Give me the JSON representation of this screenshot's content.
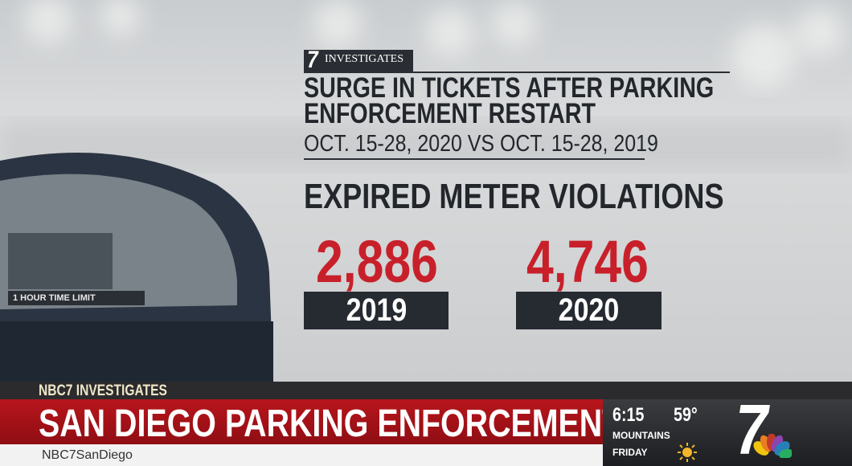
{
  "meter": {
    "label": "1 HOUR TIME LIMIT"
  },
  "graphic": {
    "badge_logo": "7",
    "badge": "INVESTIGATES",
    "title": [
      "SURGE IN TICKETS AFTER PARKING",
      "ENFORCEMENT RESTART"
    ],
    "subtitle": "OCT. 15-28, 2020 VS OCT. 15-28, 2019",
    "heading": "EXPIRED METER VIOLATIONS",
    "stats": [
      {
        "value": "2,886",
        "year": "2019"
      },
      {
        "value": "4,746",
        "year": "2020"
      }
    ]
  },
  "lower_third": {
    "tag": "NBC7 INVESTIGATES",
    "headline": "SAN DIEGO PARKING ENFORCEMENT",
    "social": "NBC7SanDiego",
    "time": "6:15",
    "temperature": "59°",
    "location": "MOUNTAINS",
    "day": "FRIDAY",
    "logo": "7"
  }
}
